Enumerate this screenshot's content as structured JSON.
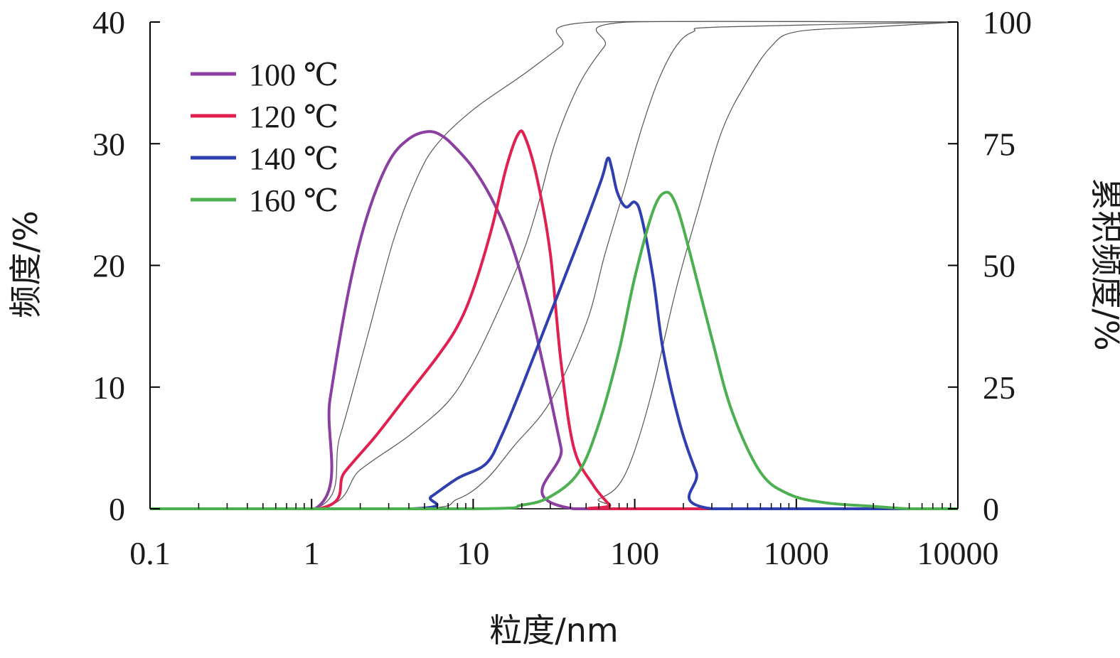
{
  "chart_data": {
    "type": "line",
    "xlabel": "粒度/nm",
    "ylabel": "频度/%",
    "y2label": "累积频度/%",
    "xscale": "log",
    "xlim": [
      0.1,
      10000
    ],
    "ylim": [
      0,
      40
    ],
    "y2lim": [
      0,
      100
    ],
    "x_ticks": [
      "0.1",
      "1",
      "10",
      "100",
      "1000",
      "10000"
    ],
    "y_ticks": [
      "0",
      "10",
      "20",
      "30",
      "40"
    ],
    "y2_ticks": [
      "0",
      "25",
      "50",
      "75",
      "100"
    ],
    "grid": false,
    "legend_position": "top-left",
    "series": [
      {
        "name": "100 ℃",
        "color": "#8b3fa0",
        "points": [
          [
            0.1,
            0
          ],
          [
            1.05,
            0
          ],
          [
            1.3,
            9
          ],
          [
            1.7,
            18
          ],
          [
            2.2,
            24
          ],
          [
            3,
            28.5
          ],
          [
            4,
            30.4
          ],
          [
            5.3,
            31
          ],
          [
            6.5,
            30.6
          ],
          [
            8,
            29.5
          ],
          [
            10,
            28
          ],
          [
            13,
            25.5
          ],
          [
            17,
            22
          ],
          [
            22,
            17
          ],
          [
            28,
            11
          ],
          [
            35,
            5
          ],
          [
            42,
            0
          ],
          [
            10000,
            0
          ]
        ],
        "cumulative": [
          [
            0.1,
            0
          ],
          [
            1.05,
            0
          ],
          [
            1.5,
            15
          ],
          [
            2.2,
            35
          ],
          [
            3.2,
            55
          ],
          [
            4.5,
            68
          ],
          [
            6,
            75
          ],
          [
            10,
            82
          ],
          [
            20,
            89
          ],
          [
            35,
            95
          ],
          [
            55,
            100
          ],
          [
            10000,
            100
          ]
        ]
      },
      {
        "name": "120 ℃",
        "color": "#e0204e",
        "points": [
          [
            0.1,
            0
          ],
          [
            1.1,
            0
          ],
          [
            1.6,
            3
          ],
          [
            2.5,
            6
          ],
          [
            4,
            9.5
          ],
          [
            6,
            12.5
          ],
          [
            8,
            15
          ],
          [
            10,
            18
          ],
          [
            13,
            23
          ],
          [
            16,
            28
          ],
          [
            19,
            30.8
          ],
          [
            21,
            30.5
          ],
          [
            25,
            27
          ],
          [
            30,
            21
          ],
          [
            35,
            12
          ],
          [
            42,
            5
          ],
          [
            55,
            2
          ],
          [
            70,
            0.3
          ],
          [
            75,
            0
          ],
          [
            10000,
            0
          ]
        ],
        "cumulative": [
          [
            0.1,
            0
          ],
          [
            1.1,
            0
          ],
          [
            2,
            8
          ],
          [
            4,
            15
          ],
          [
            7,
            22
          ],
          [
            10,
            30
          ],
          [
            14,
            40
          ],
          [
            20,
            52
          ],
          [
            25,
            62
          ],
          [
            32,
            75
          ],
          [
            45,
            87
          ],
          [
            65,
            95
          ],
          [
            90,
            100
          ],
          [
            10000,
            100
          ]
        ]
      },
      {
        "name": "140 ℃",
        "color": "#2f3fb0",
        "points": [
          [
            0.1,
            0
          ],
          [
            4.2,
            0
          ],
          [
            5.5,
            1
          ],
          [
            8,
            2.5
          ],
          [
            12,
            3.7
          ],
          [
            15,
            6
          ],
          [
            20,
            10
          ],
          [
            30,
            16
          ],
          [
            45,
            22
          ],
          [
            62,
            27
          ],
          [
            68,
            28.8
          ],
          [
            72,
            28
          ],
          [
            78,
            26
          ],
          [
            88,
            24.8
          ],
          [
            100,
            25.2
          ],
          [
            110,
            24
          ],
          [
            130,
            19
          ],
          [
            150,
            13
          ],
          [
            190,
            7
          ],
          [
            240,
            3
          ],
          [
            300,
            0
          ],
          [
            10000,
            0
          ]
        ],
        "cumulative": [
          [
            0.1,
            0
          ],
          [
            4.2,
            0
          ],
          [
            8,
            2
          ],
          [
            12,
            6
          ],
          [
            18,
            13
          ],
          [
            30,
            22
          ],
          [
            50,
            38
          ],
          [
            65,
            52
          ],
          [
            85,
            65
          ],
          [
            110,
            78
          ],
          [
            140,
            88
          ],
          [
            180,
            95
          ],
          [
            230,
            98
          ],
          [
            350,
            99
          ],
          [
            10000,
            100
          ]
        ]
      },
      {
        "name": "160 ℃",
        "color": "#4caf50",
        "points": [
          [
            0.1,
            0
          ],
          [
            10,
            0
          ],
          [
            20,
            0.3
          ],
          [
            30,
            1
          ],
          [
            45,
            3
          ],
          [
            60,
            7
          ],
          [
            80,
            13
          ],
          [
            100,
            19
          ],
          [
            130,
            24.5
          ],
          [
            155,
            26
          ],
          [
            180,
            25
          ],
          [
            220,
            21
          ],
          [
            300,
            14
          ],
          [
            400,
            8
          ],
          [
            600,
            3
          ],
          [
            900,
            1.2
          ],
          [
            1500,
            0.5
          ],
          [
            3000,
            0.2
          ],
          [
            5000,
            0
          ],
          [
            10000,
            0
          ]
        ],
        "cumulative": [
          [
            0.1,
            0
          ],
          [
            40,
            0
          ],
          [
            60,
            2
          ],
          [
            80,
            5
          ],
          [
            100,
            12
          ],
          [
            130,
            25
          ],
          [
            180,
            45
          ],
          [
            250,
            62
          ],
          [
            350,
            78
          ],
          [
            500,
            88
          ],
          [
            700,
            95
          ],
          [
            1000,
            98
          ],
          [
            3000,
            99
          ],
          [
            10000,
            100
          ]
        ]
      }
    ]
  }
}
